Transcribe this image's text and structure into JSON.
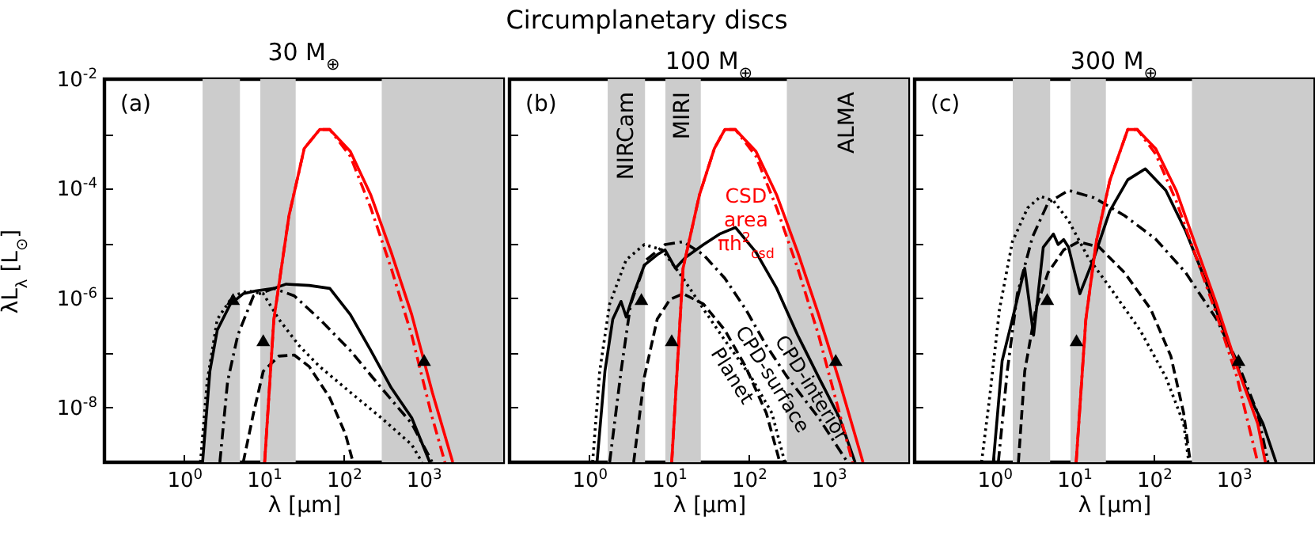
{
  "chart_data": [
    {
      "type": "line",
      "subtitle": "30 M$_{⊕}$",
      "xlabel": "λ [μm]",
      "ylabel": "λL$_{λ}$ [L$_{⊙}$]",
      "log": "xy",
      "xlim": [
        0.1,
        10000
      ],
      "ylim": [
        1e-09,
        0.01
      ],
      "xticks": [
        {
          "value": 1,
          "label": "10$^{0}$"
        },
        {
          "value": 10,
          "label": "10$^{1}$"
        },
        {
          "value": 100,
          "label": "10$^{2}$"
        },
        {
          "value": 1000,
          "label": "10$^{3}$"
        }
      ],
      "yticks": [
        {
          "value": 1e-08,
          "label": "10$^{-8}$"
        },
        {
          "value": 1e-06,
          "label": "10$^{-6}$"
        },
        {
          "value": 0.0001,
          "label": "10$^{-4}$"
        },
        {
          "value": 0.01,
          "label": "10$^{-2}$"
        },
        {
          "value": 1e-09,
          "label": null
        },
        {
          "value": 1e-07,
          "label": null
        },
        {
          "value": 1e-05,
          "label": null
        },
        {
          "value": 0.001,
          "label": null
        }
      ],
      "bands": [
        {
          "axis": "x",
          "from": 1.7,
          "to": 5,
          "color": "#cccccc"
        },
        {
          "axis": "x",
          "from": 9,
          "to": 25,
          "color": "#cccccc"
        },
        {
          "axis": "x",
          "from": 300,
          "to": 10000,
          "color": "#cccccc"
        }
      ],
      "annotations": [
        "(a)"
      ],
      "series": [
        {
          "line_style": "dotted",
          "color": "#000000",
          "x": [
            1.6,
            1.94,
            2.6,
            4.1,
            6.3,
            9.8,
            15.4,
            27.6,
            50,
            121,
            295,
            712,
            960
          ],
          "values": [
            1e-09,
            3e-08,
            4.1e-07,
            1.1e-06,
            1.35e-06,
            1.2e-06,
            4.1e-07,
            1.35e-07,
            5.6e-08,
            1.9e-08,
            6.5e-09,
            2.1e-09,
            1e-09
          ]
        },
        {
          "line_style": "dashed",
          "color": "#000000",
          "x": [
            5.5,
            7.4,
            9.8,
            15.4,
            24,
            37,
            67,
            105,
            131
          ],
          "values": [
            1e-09,
            7.9e-09,
            4.6e-08,
            8.7e-08,
            9.1e-08,
            5.6e-08,
            1.5e-08,
            3.3e-09,
            1e-09
          ]
        },
        {
          "line_style": "dashdot",
          "color": "#000000",
          "x": [
            2.8,
            3.5,
            4.7,
            7.4,
            13.3,
            24,
            50,
            121,
            295,
            712,
            1290
          ],
          "values": [
            1e-09,
            3e-08,
            2.1e-07,
            1.1e-06,
            1.5e-06,
            1.1e-06,
            4.1e-07,
            1.1e-07,
            2.3e-08,
            5.1e-09,
            1e-09
          ]
        },
        {
          "line_style": "solid",
          "color": "#000000",
          "x": [
            1.7,
            2.1,
            2.6,
            3.8,
            5.5,
            7.9,
            13.3,
            19,
            37,
            67,
            121,
            219,
            394,
            712,
            1200
          ],
          "values": [
            1e-09,
            4.6e-08,
            2.6e-07,
            7.8e-07,
            1.2e-06,
            1.35e-06,
            1.5e-06,
            1.8e-06,
            1.7e-06,
            1.5e-06,
            5e-07,
            1.1e-07,
            2.3e-08,
            6.5e-09,
            1e-09
          ]
        },
        {
          "line_style": "solid",
          "color": "#ff0000",
          "x": [
            10.2,
            13.3,
            20.6,
            32,
            50,
            67,
            121,
            219,
            394,
            712,
            1290,
            2330
          ],
          "values": [
            1e-09,
            4e-07,
            3.2e-05,
            0.00054,
            0.0012,
            0.0012,
            0.00048,
            7.6e-05,
            6.9e-06,
            5e-07,
            1.9e-08,
            1e-09
          ]
        },
        {
          "line_style": "dashdot",
          "color": "#ff0000",
          "x": [
            10.2,
            13.3,
            20.6,
            32,
            50,
            67,
            121,
            219,
            394,
            712,
            1290,
            1860
          ],
          "values": [
            1e-09,
            4e-07,
            3.2e-05,
            0.00054,
            0.0012,
            0.0012,
            0.00039,
            4.4e-05,
            3.5e-06,
            2.1e-07,
            6.5e-09,
            1e-09
          ]
        },
        {
          "type": "scatter",
          "marker": "triangle",
          "color": "#000000",
          "x": [
            4.1,
            9.8,
            1020
          ],
          "values": [
            9.6e-07,
            1.7e-07,
            7.4e-08
          ]
        }
      ]
    },
    {
      "type": "line",
      "title": "Circumplanetary discs",
      "subtitle": "100 M$_{⊕}$",
      "xlabel": "λ [μm]",
      "log": "xy",
      "tick_labels": "x",
      "xlim": [
        0.1,
        10000
      ],
      "ylim": [
        1e-09,
        0.01
      ],
      "xticks": [
        {
          "value": 1,
          "label": "10$^{0}$"
        },
        {
          "value": 10,
          "label": "10$^{1}$"
        },
        {
          "value": 100,
          "label": "10$^{2}$"
        },
        {
          "value": 1000,
          "label": "10$^{3}$"
        }
      ],
      "yticks": [
        1e-09,
        1e-08,
        1e-07,
        1e-06,
        1e-05,
        0.0001,
        0.001,
        0.01
      ],
      "bands": [
        {
          "axis": "x",
          "from": 1.7,
          "to": 5,
          "label": "NIRCam",
          "color": "#cccccc"
        },
        {
          "axis": "x",
          "from": 9,
          "to": 25,
          "label": "MIRI",
          "color": "#cccccc"
        },
        {
          "axis": "x",
          "from": 300,
          "to": 10000,
          "label": "ALMA",
          "color": "#cccccc"
        }
      ],
      "annotations": [
        "(b)"
      ],
      "series": [
        {
          "name": "Planet",
          "line_style": "dotted",
          "color": "#000000",
          "x": [
            1.1,
            1.35,
            1.8,
            2.9,
            4.9,
            8.2,
            15,
            27,
            50,
            107,
            195,
            283
          ],
          "values": [
            1e-09,
            4.6e-08,
            7.8e-07,
            5e-06,
            9.5e-06,
            7.6e-06,
            2.3e-06,
            6.3e-07,
            1.7e-07,
            3.6e-08,
            7.9e-09,
            1e-09
          ]
        },
        {
          "name": "CPD-surface",
          "line_style": "dashed",
          "color": "#000000",
          "x": [
            3.6,
            4.9,
            7.1,
            10.3,
            15,
            27,
            50,
            91,
            166,
            245
          ],
          "values": [
            1e-09,
            3.6e-08,
            4.1e-07,
            9.5e-07,
            1.2e-06,
            7.8e-07,
            2.6e-07,
            5.6e-08,
            7.9e-09,
            1e-09
          ]
        },
        {
          "name": "CPD-interior",
          "line_style": "dashdot",
          "color": "#000000",
          "x": [
            1.8,
            2.5,
            3.3,
            5.2,
            8.9,
            15,
            27,
            50,
            91,
            166,
            304,
            750,
            1730
          ],
          "values": [
            1e-09,
            4.6e-08,
            7.8e-07,
            5e-06,
            9.5e-06,
            1.07e-05,
            6.2e-06,
            2.3e-06,
            6.3e-07,
            1.35e-07,
            3.6e-08,
            6.5e-09,
            1e-09
          ]
        },
        {
          "line_style": "solid",
          "color": "#000000",
          "x": [
            1.25,
            1.57,
            1.97,
            2.5,
            2.9,
            3.6,
            4.9,
            7.1,
            8.9,
            12,
            16,
            27,
            43,
            68,
            123,
            224,
            410,
            750,
            1370,
            2150
          ],
          "values": [
            1e-09,
            4.6e-08,
            4.1e-07,
            8.7e-07,
            4.5e-07,
            1.2e-06,
            4e-06,
            6.2e-06,
            7.6e-06,
            3.5e-06,
            5.5e-06,
            9.5e-06,
            1.48e-05,
            1.95e-05,
            6.9e-06,
            1.5e-06,
            2.1e-07,
            3.6e-08,
            6.5e-09,
            1e-09
          ]
        },
        {
          "name": "CSD area πh$^{2}$$_{csd}$",
          "line_style": "solid",
          "color": "#ff0000",
          "x": [
            10.8,
            15,
            24,
            37,
            50,
            68,
            123,
            224,
            410,
            750,
            1370,
            2700
          ],
          "values": [
            1e-09,
            3.5e-06,
            7.6e-05,
            0.00054,
            0.0012,
            0.0012,
            0.00048,
            7.6e-05,
            6.9e-06,
            5e-07,
            3e-08,
            1e-09
          ]
        },
        {
          "line_style": "dashdot",
          "color": "#ff0000",
          "x": [
            10.8,
            15,
            24,
            37,
            50,
            68,
            123,
            224,
            410,
            750,
            1370,
            2000
          ],
          "values": [
            1e-09,
            3.5e-06,
            7.6e-05,
            0.00054,
            0.0012,
            0.0012,
            0.00039,
            4.4e-05,
            3.5e-06,
            2.1e-07,
            7.9e-09,
            1e-09
          ]
        },
        {
          "type": "scatter",
          "marker": "triangle",
          "color": "#000000",
          "x": [
            4.5,
            10.8,
            1230
          ],
          "values": [
            9.6e-07,
            1.7e-07,
            7.4e-08
          ]
        }
      ]
    },
    {
      "type": "line",
      "subtitle": "300 M$_{⊕}$",
      "xlabel": "λ [μm]",
      "log": "xy",
      "tick_labels": "x",
      "xlim": [
        0.1,
        10000
      ],
      "ylim": [
        1e-09,
        0.01
      ],
      "xticks": [
        {
          "value": 1,
          "label": "10$^{0}$"
        },
        {
          "value": 10,
          "label": "10$^{1}$"
        },
        {
          "value": 100,
          "label": "10$^{2}$"
        },
        {
          "value": 1000,
          "label": "10$^{3}$"
        }
      ],
      "yticks": [
        1e-09,
        1e-08,
        1e-07,
        1e-06,
        1e-05,
        0.0001,
        0.001,
        0.01
      ],
      "bands": [
        {
          "axis": "x",
          "from": 1.7,
          "to": 5,
          "color": "#cccccc"
        },
        {
          "axis": "x",
          "from": 9,
          "to": 25,
          "color": "#cccccc"
        },
        {
          "axis": "x",
          "from": 300,
          "to": 10000,
          "color": "#cccccc"
        }
      ],
      "annotations": [
        "(c)"
      ],
      "series": [
        {
          "line_style": "dotted",
          "color": "#000000",
          "x": [
            0.69,
            0.87,
            1.16,
            1.68,
            2.6,
            3.8,
            5.5,
            8.5,
            15,
            32,
            67,
            141,
            236,
            274
          ],
          "values": [
            1e-09,
            1.5e-08,
            6.3e-07,
            1.07e-05,
            4.4e-05,
            7.2e-05,
            6e-05,
            2.6e-05,
            5.5e-06,
            1.2e-06,
            2.6e-07,
            3.6e-08,
            5.1e-09,
            1e-09
          ]
        },
        {
          "line_style": "dashed",
          "color": "#000000",
          "x": [
            2.0,
            2.4,
            3.3,
            4.7,
            7.4,
            11.4,
            20.6,
            43,
            91,
            163,
            236,
            286
          ],
          "values": [
            1e-09,
            4.6e-08,
            6.3e-07,
            2.9e-06,
            7.6e-06,
            1.07e-05,
            8.5e-06,
            2.9e-06,
            6.3e-07,
            8.7e-08,
            7.9e-09,
            1e-09
          ]
        },
        {
          "line_style": "dashdot",
          "color": "#000000",
          "x": [
            1.12,
            1.45,
            1.94,
            3.0,
            4.7,
            8.5,
            17.8,
            43,
            105,
            251,
            610,
            1100,
            2000,
            2700
          ],
          "values": [
            1e-09,
            4.6e-08,
            1.2e-06,
            1.3e-05,
            5.5e-05,
            9.3e-05,
            6.8e-05,
            3.2e-05,
            1.2e-05,
            2.9e-06,
            4.1e-07,
            7.1e-08,
            7.9e-09,
            1e-09
          ]
        },
        {
          "line_style": "solid",
          "color": "#000000",
          "x": [
            0.97,
            1.25,
            1.68,
            2.4,
            3.1,
            4.1,
            5.5,
            6.3,
            7.4,
            8.5,
            11.8,
            17.8,
            28,
            47,
            78,
            141,
            251,
            457,
            830,
            1480,
            2330,
            3400
          ],
          "values": [
            1e-09,
            7.1e-08,
            4.1e-07,
            3.5e-06,
            2.1e-07,
            8.5e-06,
            1.48e-05,
            9.5e-06,
            1.17e-05,
            8.5e-06,
            1.2e-06,
            5.5e-06,
            3.9e-05,
            0.000145,
            0.00023,
            9.3e-05,
            1.66e-05,
            1.86e-06,
            1.7e-07,
            1.9e-08,
            5.1e-09,
            1e-09
          ]
        },
        {
          "line_style": "solid",
          "color": "#ff0000",
          "x": [
            10.6,
            14,
            19,
            28,
            47,
            62,
            105,
            190,
            340,
            610,
            1100,
            2000,
            2500
          ],
          "values": [
            1e-09,
            4e-07,
            1.1e-05,
            0.00014,
            0.0012,
            0.0012,
            0.00054,
            9.3e-05,
            8.5e-06,
            7.8e-07,
            5.6e-08,
            5.1e-09,
            1e-09
          ]
        },
        {
          "line_style": "dashdot",
          "color": "#ff0000",
          "x": [
            10.6,
            14,
            19,
            28,
            47,
            62,
            105,
            190,
            340,
            610,
            1100,
            2000
          ],
          "values": [
            1e-09,
            4e-07,
            1.1e-05,
            0.00014,
            0.0012,
            0.0012,
            0.00043,
            6e-05,
            5.5e-06,
            5e-07,
            3.6e-08,
            1e-09
          ]
        },
        {
          "type": "scatter",
          "marker": "triangle",
          "color": "#000000",
          "x": [
            4.6,
            10.7,
            1150
          ],
          "values": [
            9.6e-07,
            1.7e-07,
            7.4e-08
          ]
        }
      ]
    }
  ]
}
